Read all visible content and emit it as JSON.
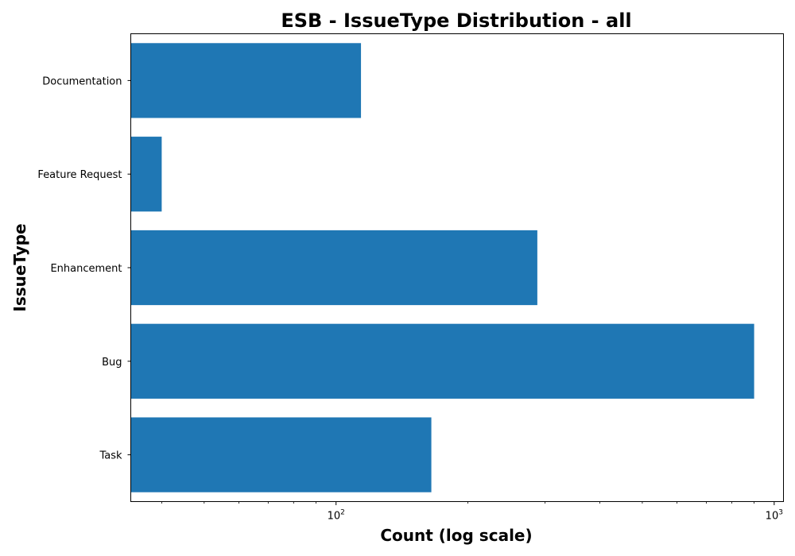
{
  "chart_data": {
    "type": "bar",
    "orientation": "horizontal",
    "title": "ESB - IssueType Distribution - all",
    "xlabel": "Count (log scale)",
    "ylabel": "IssueType",
    "x_scale": "log",
    "xlim": [
      34,
      1050
    ],
    "categories": [
      "Task",
      "Bug",
      "Enhancement",
      "Feature Request",
      "Documentation"
    ],
    "values": [
      165,
      900,
      288,
      40,
      114
    ],
    "x_major_ticks": [
      {
        "value": 100,
        "base": "10",
        "exp": "2"
      },
      {
        "value": 1000,
        "base": "10",
        "exp": "3"
      }
    ],
    "x_minor_ticks": [
      40,
      50,
      60,
      70,
      80,
      90,
      200,
      300,
      400,
      500,
      600,
      700,
      800,
      900
    ],
    "colors": {
      "bar": "#1f77b4",
      "axis": "#000000",
      "background": "#ffffff"
    },
    "grid": false,
    "legend": "none"
  }
}
